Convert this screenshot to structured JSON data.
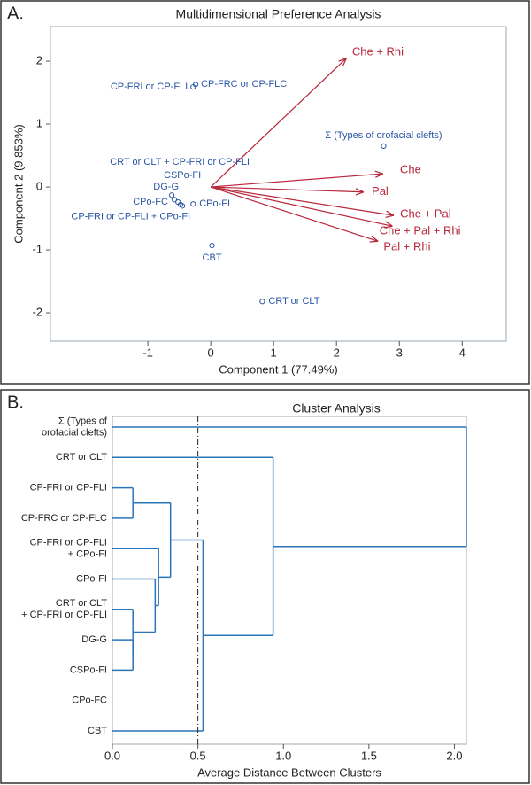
{
  "chart_data": [
    {
      "type": "biplot",
      "panel_label": "A.",
      "title": "Multidimensional Preference Analysis",
      "x_label": "Component 1 (77.49%)",
      "y_label": "Component 2 (9.853%)",
      "xlim": [
        -2.55,
        4.7
      ],
      "ylim": [
        -2.45,
        2.55
      ],
      "xticks": [
        -1,
        0,
        1,
        2,
        3,
        4
      ],
      "yticks": [
        -2,
        -1,
        0,
        1,
        2
      ],
      "points": {
        "color": "#2a56a6",
        "labels": [
          "CP-FRI or CP-FLI",
          "CP-FRC or CP-FLC",
          "Σ (Types of orofacial clefts)",
          "CRT or CLT + CP-FRI or CP-FLI",
          "CSPo-FI",
          "DG-G",
          "CPo-FC",
          "CP-FRI or CP-FLI + CPo-FI",
          "CPo-FI",
          "CBT",
          "CRT or CLT"
        ],
        "x": [
          -0.28,
          -0.24,
          2.75,
          -0.62,
          -0.52,
          -0.48,
          -0.58,
          -0.45,
          -0.28,
          0.02,
          0.82
        ],
        "y": [
          1.59,
          1.63,
          0.65,
          -0.13,
          -0.24,
          -0.28,
          -0.2,
          -0.3,
          -0.27,
          -0.93,
          -1.82
        ]
      },
      "vectors": {
        "color": "#b8263a",
        "labels": [
          "Che + Rhi",
          "Che",
          "Pal",
          "Che + Pal",
          "Che + Pal + Rhi",
          "Pal + Rhi"
        ],
        "x": [
          2.15,
          2.73,
          2.42,
          2.9,
          2.88,
          2.65
        ],
        "y": [
          2.04,
          0.21,
          -0.08,
          -0.45,
          -0.62,
          -0.86
        ]
      }
    },
    {
      "type": "dendrogram",
      "panel_label": "B.",
      "title": "Cluster Analysis",
      "x_label": "Average Distance Between Clusters",
      "xlim": [
        0,
        2.07
      ],
      "xticks": [
        {
          "value": 0,
          "label": "0.0"
        },
        0.5,
        {
          "value": 1,
          "label": "1.0"
        },
        1.5,
        {
          "value": 2,
          "label": "2.0"
        }
      ],
      "cutoff": 0.5,
      "color": "#2a74b8",
      "leaves": [
        [
          "Σ (Types of",
          "orofacial clefts)"
        ],
        [
          "CRT or CLT"
        ],
        [
          "CP-FRI or CP-FLI"
        ],
        [
          "CP-FRC or CP-FLC"
        ],
        [
          "CP-FRI or CP-FLI",
          "+ CPo-FI"
        ],
        [
          "CPo-FI"
        ],
        [
          "CRT or CLT",
          "+ CP-FRI or CP-FLI"
        ],
        [
          "DG-G"
        ],
        [
          "CSPo-FI"
        ],
        [
          "CPo-FC"
        ],
        [
          "CBT"
        ]
      ],
      "merges": [
        {
          "nodes": [
            2,
            3
          ],
          "height": 0.12
        },
        {
          "nodes": [
            7,
            8
          ],
          "height": 0.12
        },
        {
          "nodes": [
            6,
            12
          ],
          "height": 0.12
        },
        {
          "nodes": [
            5,
            13
          ],
          "height": 0.25
        },
        {
          "nodes": [
            4,
            14
          ],
          "height": 0.27
        },
        {
          "nodes": [
            11,
            15
          ],
          "height": 0.34
        },
        {
          "nodes": [
            16,
            10
          ],
          "height": 0.53
        },
        {
          "nodes": [
            1,
            17
          ],
          "height": 0.94
        },
        {
          "nodes": [
            0,
            18
          ],
          "height": 2.07
        }
      ]
    }
  ]
}
